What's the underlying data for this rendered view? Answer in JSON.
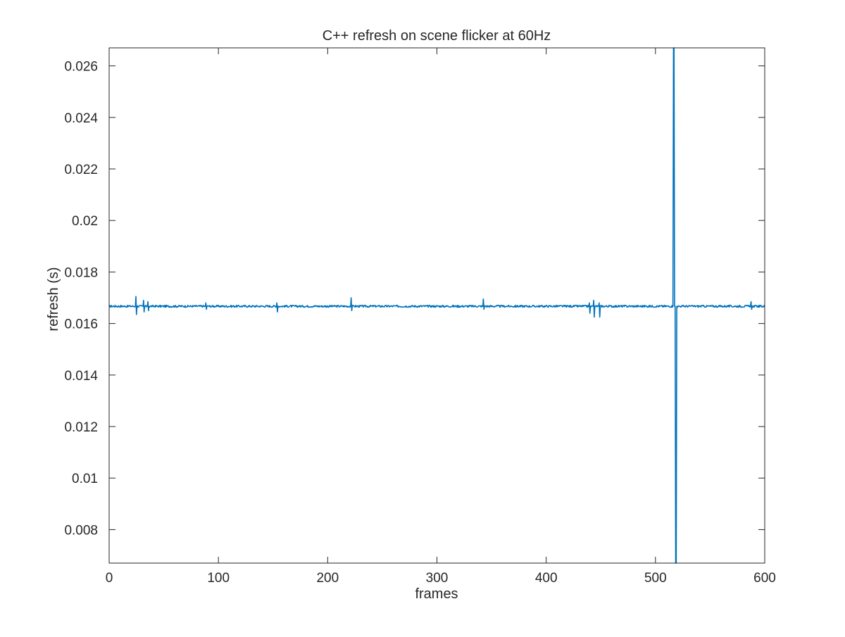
{
  "chart_data": {
    "type": "line",
    "title": "C++ refresh on scene flicker at 60Hz",
    "xlabel": "frames",
    "ylabel": "refresh (s)",
    "xlim": [
      0,
      600
    ],
    "ylim": [
      0.0067,
      0.0267
    ],
    "xticks": [
      0,
      100,
      200,
      300,
      400,
      500,
      600
    ],
    "xtick_labels": [
      "0",
      "100",
      "200",
      "300",
      "400",
      "500",
      "600"
    ],
    "yticks": [
      0.008,
      0.01,
      0.012,
      0.014,
      0.016,
      0.018,
      0.02,
      0.022,
      0.024,
      0.026
    ],
    "ytick_labels": [
      "0.008",
      "0.01",
      "0.012",
      "0.014",
      "0.016",
      "0.018",
      "0.02",
      "0.022",
      "0.024",
      "0.026"
    ],
    "grid": false,
    "line_color": "#0072BD",
    "series": [
      {
        "baseline": 0.01667,
        "noise_amplitude": 4e-05,
        "x": [
          0,
          600
        ],
        "events": [
          {
            "x": 24,
            "values": [
              0.01667,
              0.01705,
              0.01635,
              0.01667
            ]
          },
          {
            "x": 31,
            "values": [
              0.01667,
              0.0169,
              0.01645,
              0.01667
            ]
          },
          {
            "x": 35,
            "values": [
              0.01667,
              0.01685,
              0.0165,
              0.01667
            ]
          },
          {
            "x": 88,
            "values": [
              0.01667,
              0.0168,
              0.01655,
              0.01667
            ]
          },
          {
            "x": 153,
            "values": [
              0.01667,
              0.0168,
              0.01645,
              0.01667
            ]
          },
          {
            "x": 221,
            "values": [
              0.01667,
              0.017,
              0.0165,
              0.01667
            ]
          },
          {
            "x": 342,
            "values": [
              0.01667,
              0.01695,
              0.01655,
              0.01667
            ]
          },
          {
            "x": 439,
            "values": [
              0.01667,
              0.0168,
              0.0164,
              0.01667
            ]
          },
          {
            "x": 443,
            "values": [
              0.01667,
              0.0169,
              0.01625,
              0.01667
            ]
          },
          {
            "x": 448,
            "values": [
              0.01667,
              0.0168,
              0.01625,
              0.01667
            ]
          },
          {
            "x": 516,
            "values": [
              0.01667,
              0.0267,
              0.0267,
              0.01667
            ]
          },
          {
            "x": 518,
            "values": [
              0.01667,
              0.0067,
              0.0067,
              0.01667
            ]
          },
          {
            "x": 587,
            "values": [
              0.01667,
              0.01685,
              0.01655,
              0.01667
            ]
          }
        ]
      }
    ]
  }
}
